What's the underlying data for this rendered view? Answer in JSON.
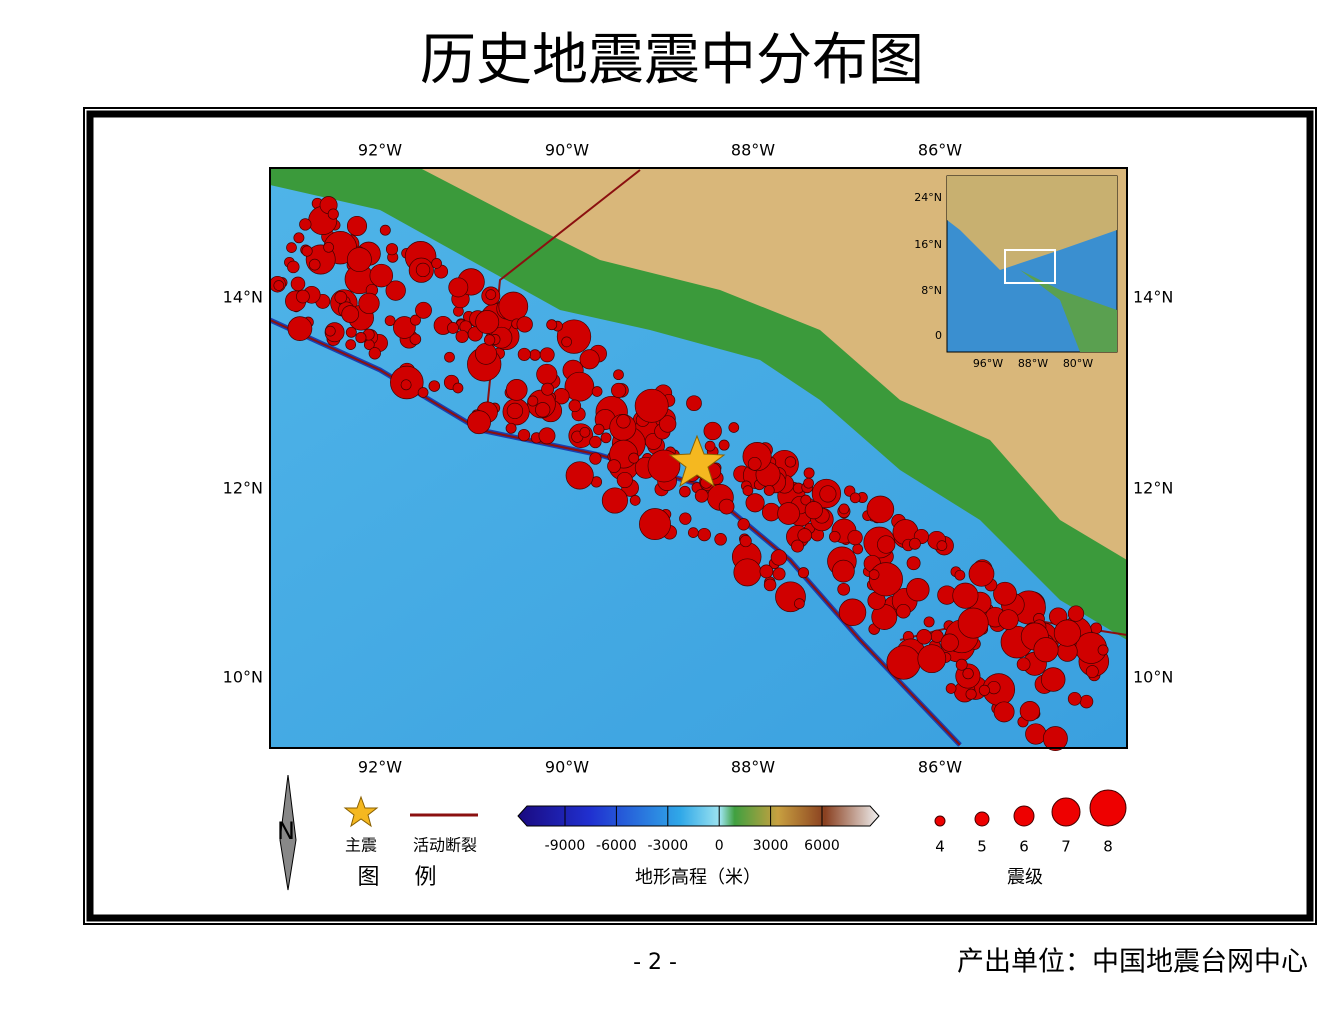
{
  "title": "历史地震震中分布图",
  "map": {
    "lon_labels": [
      "92°W",
      "90°W",
      "88°W",
      "86°W"
    ],
    "lat_labels": [
      "14°N",
      "12°N",
      "10°N"
    ],
    "inset": {
      "lat_labels": [
        "24°N",
        "16°N",
        "8°N",
        "0"
      ],
      "lon_labels": [
        "96°W",
        "88°W",
        "80°W"
      ]
    }
  },
  "legend": {
    "north": "N",
    "mainshock": "主震",
    "fault": "活动断裂",
    "title": "图 例",
    "elevation_ticks": [
      "-9000",
      "-6000",
      "-3000",
      "0",
      "3000",
      "6000"
    ],
    "elevation_title": "地形高程（米）",
    "magnitudes": [
      "4",
      "5",
      "6",
      "7",
      "8"
    ],
    "magnitude_title": "震级"
  },
  "footer": {
    "page": "- 2 -",
    "producer": "产出单位：中国地震台网中心"
  }
}
